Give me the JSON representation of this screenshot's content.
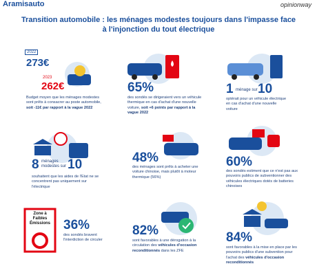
{
  "header": {
    "logo": "Aramisauto",
    "partner": "opinionway",
    "title": "Transition automobile : les ménages modestes toujours dans l'impasse face à l'injonction du tout électrique"
  },
  "panels": [
    {
      "year_a": "2022",
      "amount_a": "273€",
      "year_b": "2023",
      "amount_b": "262€",
      "text": "Budget moyen que les ménages modestes sont prêts à consacrer au poste automobile,",
      "emphasis": "soit -11€ par rapport à la vague 2022"
    },
    {
      "figure": "65%",
      "text": "des sondés se dirigeraient vers un véhicule thermique en cas d'achat d'une nouvelle voiture,",
      "emphasis": "soit +6 points par rapport à la vague 2022"
    },
    {
      "figure": "1",
      "connector": "ménage sur",
      "figure_b": "10",
      "text": "optérait pour un véhicule électrique en cas d'achat d'une nouvelle voiture"
    },
    {
      "figure": "8",
      "connector": "ménages modestes sur",
      "figure_b": "10",
      "text": "souhaitent que les aides de l'Etat ne se concentrent pas uniquement sur l'électrique"
    },
    {
      "figure": "48%",
      "text": "des ménages sont prêts à acheter une voiture chinoise, mais plutôt à moteur thermique (56%)"
    },
    {
      "figure": "60%",
      "text": "des sondés estiment que ce n'est pas aux pouvoirs publics de subventionner des véhicules électriques dotés de batteries chinoises"
    },
    {
      "sign": "Zone à Faibles Émissions",
      "figure": "36%",
      "text": "des sondés bravent l'interdiction de circuler"
    },
    {
      "figure": "82%",
      "text": "sont favorables à une dérogation à la circulation des",
      "emphasis": "véhicules d'occasion reconditionnés",
      "text_end": "dans les ZFE"
    },
    {
      "figure": "84%",
      "text": "sont favorables à la mise en place par les pouvoirs publics d'une subvention pour l'achat des",
      "emphasis": "véhicules d'occasion reconditionnés"
    }
  ]
}
